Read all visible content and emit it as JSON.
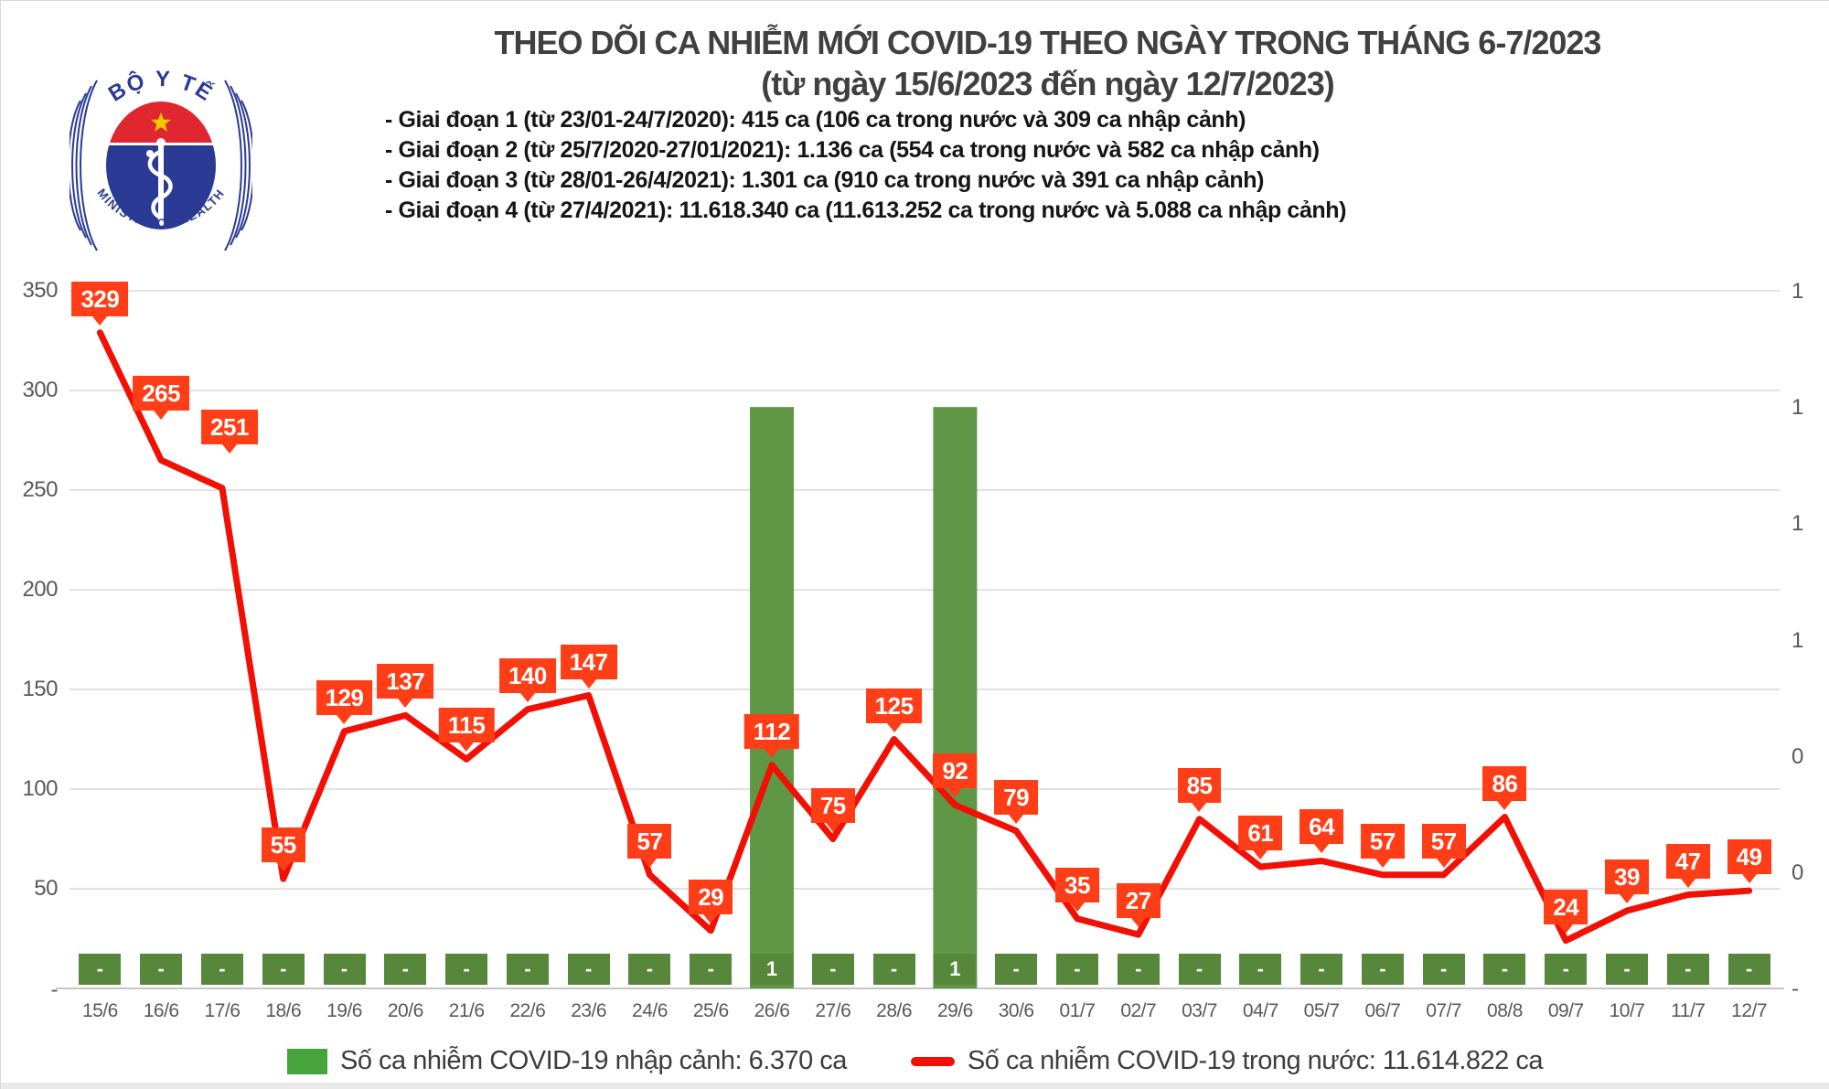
{
  "logo": {
    "top_text": "BỘ Y TẾ",
    "bottom_text": "MINISTRY OF HEALTH"
  },
  "header": {
    "title": "THEO DÕI CA NHIỄM MỚI COVID-19 THEO NGÀY TRONG THÁNG 6-7/2023",
    "subtitle": "(từ ngày 15/6/2023 đến ngày 12/7/2023)"
  },
  "phases": [
    "- Giai đoạn 1 (từ 23/01-24/7/2020): 415 ca (106 ca trong nước và 309 ca nhập cảnh)",
    "- Giai đoạn 2 (từ 25/7/2020-27/01/2021): 1.136 ca (554 ca trong nước và 582 ca nhập cảnh)",
    "- Giai đoạn 3 (từ 28/01-26/4/2021): 1.301 ca (910 ca trong nước và 391 ca nhập cảnh)",
    "- Giai đoạn 4 (từ 27/4/2021): 11.618.340 ca (11.613.252 ca trong nước và 5.088 ca nhập cảnh)"
  ],
  "chart_data": {
    "type": "line+bar",
    "categories": [
      "15/6",
      "16/6",
      "17/6",
      "18/6",
      "19/6",
      "20/6",
      "21/6",
      "22/6",
      "23/6",
      "24/6",
      "25/6",
      "26/6",
      "27/6",
      "28/6",
      "29/6",
      "30/6",
      "01/7",
      "02/7",
      "03/7",
      "04/7",
      "05/7",
      "06/7",
      "07/7",
      "08/8",
      "09/7",
      "10/7",
      "11/7",
      "12/7"
    ],
    "series": [
      {
        "name": "Số ca nhiễm COVID-19 trong nước",
        "type": "line",
        "axis": "left",
        "values": [
          329,
          265,
          251,
          55,
          129,
          137,
          115,
          140,
          147,
          57,
          29,
          112,
          75,
          125,
          92,
          79,
          35,
          27,
          85,
          61,
          64,
          57,
          57,
          86,
          24,
          39,
          47,
          49
        ]
      },
      {
        "name": "Số ca nhiễm COVID-19 nhập cảnh",
        "type": "bar",
        "axis": "right",
        "values": [
          0,
          0,
          0,
          0,
          0,
          0,
          0,
          0,
          0,
          0,
          0,
          1,
          0,
          0,
          1,
          0,
          0,
          0,
          0,
          0,
          0,
          0,
          0,
          0,
          0,
          0,
          0,
          0
        ],
        "value_labels": [
          "-",
          "-",
          "-",
          "-",
          "-",
          "-",
          "-",
          "-",
          "-",
          "-",
          "-",
          "1",
          "-",
          "-",
          "1",
          "-",
          "-",
          "-",
          "-",
          "-",
          "-",
          "-",
          "-",
          "-",
          "-",
          "-",
          "-",
          "-"
        ]
      }
    ],
    "left_axis": {
      "tick_labels": [
        "350",
        "300",
        "250",
        "200",
        "150",
        "100",
        "50"
      ],
      "zero_label": "-",
      "range": [
        0,
        350
      ]
    },
    "right_axis": {
      "tick_labels": [
        "1",
        "1",
        "1",
        "1",
        "0",
        "0",
        "-"
      ],
      "range": [
        0,
        1.2
      ]
    },
    "grid": true,
    "legend_position": "bottom"
  },
  "legend": [
    {
      "label": "Số ca nhiễm COVID-19 nhập cảnh: 6.370 ca",
      "type": "bar",
      "color": "#47a33c"
    },
    {
      "label": "Số ca nhiễm COVID-19 trong nước: 11.614.822 ca",
      "type": "line",
      "color": "#f20f04"
    }
  ],
  "colors": {
    "line": "#f20f04",
    "label_bg": "#ff3d17",
    "bar": "#5f9747",
    "badge": "#57873b",
    "legend_swatch": "#47a33c",
    "grid": "#d9d9d9",
    "baseline": "#c6c6c6",
    "axis_text": "#595959",
    "title_text": "#404040",
    "logo_blue": "#2b3a94",
    "logo_red": "#e02730",
    "logo_star": "#f7c600"
  }
}
